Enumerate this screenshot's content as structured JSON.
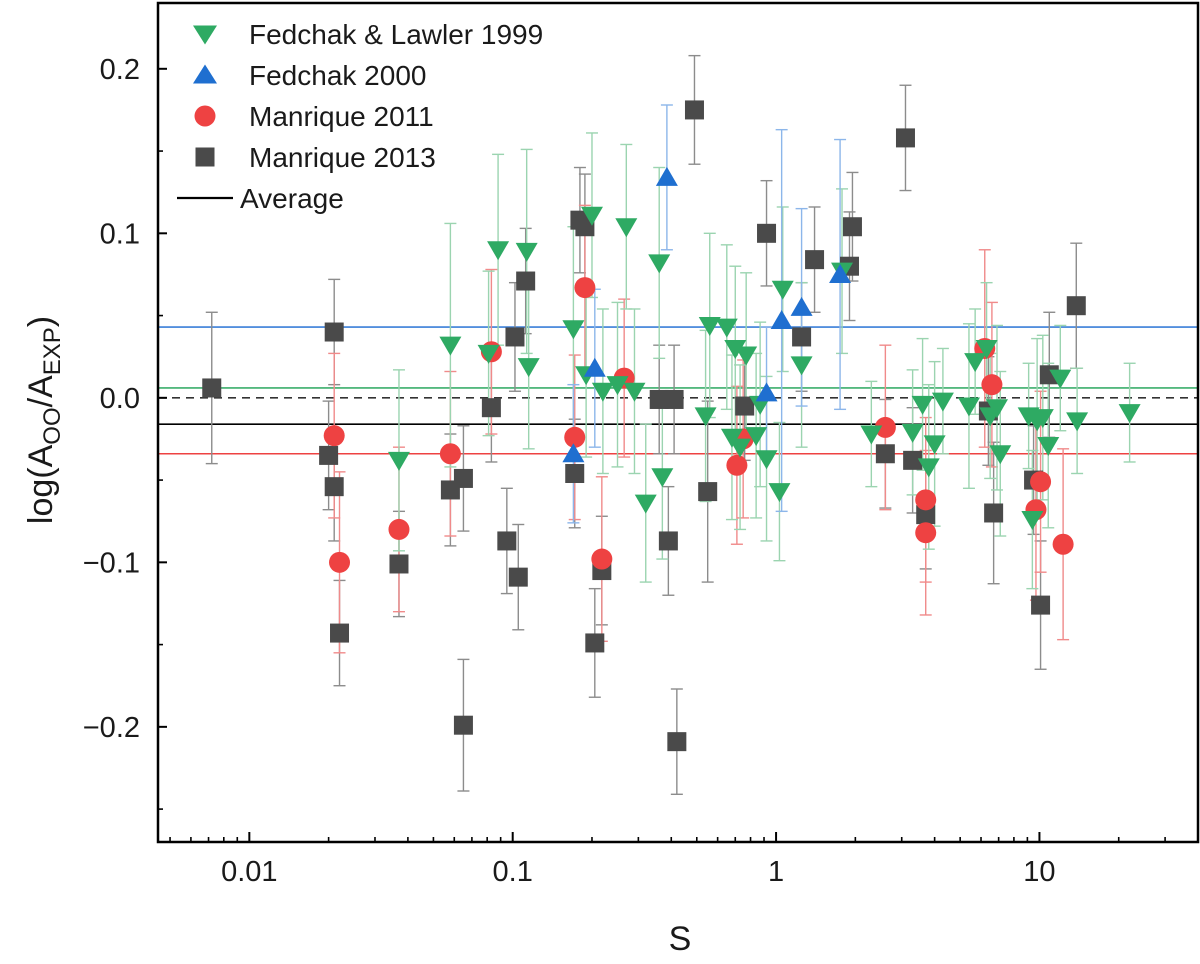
{
  "chart_data": {
    "type": "scatter",
    "xscale": "log",
    "xlim": [
      0.0045,
      40
    ],
    "ylim": [
      -0.27,
      0.24
    ],
    "xlabel": "S",
    "ylabel_main": "log(A",
    "ylabel_sub1": "OO",
    "ylabel_mid": "/A",
    "ylabel_sub2": "EXP",
    "ylabel_end": ")",
    "x_ticks": [
      {
        "value": 0.01,
        "label": "0.01"
      },
      {
        "value": 0.1,
        "label": "0.1"
      },
      {
        "value": 1,
        "label": "1"
      },
      {
        "value": 10,
        "label": "10"
      }
    ],
    "y_ticks": [
      {
        "value": 0.2,
        "label": "0.2"
      },
      {
        "value": 0.1,
        "label": "0.1"
      },
      {
        "value": 0.0,
        "label": "0.0"
      },
      {
        "value": -0.1,
        "label": "−0.1"
      },
      {
        "value": -0.2,
        "label": "−0.2"
      }
    ],
    "legend": {
      "position": "top-left",
      "entries": [
        {
          "label": "Fedchak & Lawler 1999",
          "marker": "triangle-down",
          "color": "#2eaa63"
        },
        {
          "label": "Fedchak 2000",
          "marker": "triangle-up",
          "color": "#1f6fd0"
        },
        {
          "label": "Manrique 2011",
          "marker": "circle",
          "color": "#ee4242"
        },
        {
          "label": "Manrique 2013",
          "marker": "square",
          "color": "#4a4a4a"
        },
        {
          "label": "Average",
          "marker": "line",
          "color": "#000000"
        }
      ]
    },
    "reference_lines": [
      {
        "name": "Fedchak 2000 mean",
        "y": 0.043,
        "color": "#3a7fd8",
        "dash": "solid"
      },
      {
        "name": "Fedchak & Lawler 1999 mean",
        "y": 0.006,
        "color": "#3cae6c",
        "dash": "solid"
      },
      {
        "name": "zero",
        "y": 0.0,
        "color": "#333333",
        "dash": "dashed"
      },
      {
        "name": "Average",
        "y": -0.016,
        "color": "#000000",
        "dash": "solid"
      },
      {
        "name": "Manrique 2011 mean",
        "y": -0.034,
        "color": "#ee4242",
        "dash": "solid"
      }
    ],
    "series": [
      {
        "name": "Manrique 2013",
        "marker": "square",
        "color": "#4a4a4a",
        "err_color": "#8c8c8c",
        "points": [
          [
            0.0072,
            0.006,
            0.046
          ],
          [
            0.021,
            0.04,
            0.032
          ],
          [
            0.02,
            -0.035,
            0.033
          ],
          [
            0.021,
            -0.054,
            0.033
          ],
          [
            0.022,
            -0.143,
            0.032
          ],
          [
            0.037,
            -0.101,
            0.032
          ],
          [
            0.058,
            -0.056,
            0.034
          ],
          [
            0.065,
            -0.049,
            0.032
          ],
          [
            0.065,
            -0.199,
            0.04
          ],
          [
            0.083,
            -0.006,
            0.033
          ],
          [
            0.095,
            -0.087,
            0.032
          ],
          [
            0.102,
            0.037,
            0.033
          ],
          [
            0.105,
            -0.109,
            0.032
          ],
          [
            0.112,
            0.071,
            0.032
          ],
          [
            0.172,
            -0.046,
            0.033
          ],
          [
            0.18,
            0.108,
            0.032
          ],
          [
            0.188,
            0.104,
            0.032
          ],
          [
            0.205,
            -0.149,
            0.033
          ],
          [
            0.218,
            -0.105,
            0.033
          ],
          [
            0.36,
            -0.001,
            0.033
          ],
          [
            0.39,
            -0.087,
            0.033
          ],
          [
            0.41,
            -0.001,
            0.033
          ],
          [
            0.42,
            -0.209,
            0.032
          ],
          [
            0.49,
            0.175,
            0.033
          ],
          [
            0.55,
            -0.057,
            0.055
          ],
          [
            0.76,
            -0.005,
            0.033
          ],
          [
            0.92,
            0.1,
            0.032
          ],
          [
            1.25,
            0.037,
            0.033
          ],
          [
            1.4,
            0.084,
            0.032
          ],
          [
            1.9,
            0.08,
            0.033
          ],
          [
            1.95,
            0.104,
            0.033
          ],
          [
            2.6,
            -0.034,
            0.033
          ],
          [
            3.1,
            0.158,
            0.032
          ],
          [
            3.3,
            -0.038,
            0.032
          ],
          [
            3.7,
            -0.071,
            0.033
          ],
          [
            6.4,
            -0.008,
            0.033
          ],
          [
            6.7,
            -0.07,
            0.043
          ],
          [
            9.5,
            -0.05,
            0.033
          ],
          [
            10.1,
            -0.126,
            0.039
          ],
          [
            10.9,
            0.014,
            0.038
          ],
          [
            13.8,
            0.056,
            0.038
          ]
        ]
      },
      {
        "name": "Manrique 2011",
        "marker": "circle",
        "color": "#ee4242",
        "err_color": "#f08a8a",
        "points": [
          [
            0.021,
            -0.023,
            0.05
          ],
          [
            0.022,
            -0.1,
            0.055
          ],
          [
            0.037,
            -0.08,
            0.05
          ],
          [
            0.058,
            -0.034,
            0.05
          ],
          [
            0.083,
            0.028,
            0.05
          ],
          [
            0.172,
            -0.024,
            0.05
          ],
          [
            0.188,
            0.067,
            0.05
          ],
          [
            0.218,
            -0.098,
            0.05
          ],
          [
            0.265,
            0.012,
            0.048
          ],
          [
            0.71,
            -0.041,
            0.048
          ],
          [
            0.75,
            -0.025,
            0.048
          ],
          [
            2.6,
            -0.018,
            0.05
          ],
          [
            3.7,
            -0.062,
            0.05
          ],
          [
            3.7,
            -0.082,
            0.05
          ],
          [
            6.2,
            0.03,
            0.06
          ],
          [
            6.6,
            0.008,
            0.05
          ],
          [
            9.7,
            -0.068,
            0.055
          ],
          [
            10.1,
            -0.051,
            0.055
          ],
          [
            12.3,
            -0.089,
            0.058
          ]
        ]
      },
      {
        "name": "Fedchak & Lawler 1999",
        "marker": "triangle-down",
        "color": "#2eaa63",
        "err_color": "#9bd4b0",
        "points": [
          [
            0.037,
            -0.038,
            0.055
          ],
          [
            0.058,
            0.032,
            0.074
          ],
          [
            0.081,
            0.027,
            0.05
          ],
          [
            0.088,
            0.09,
            0.058
          ],
          [
            0.113,
            0.089,
            0.062
          ],
          [
            0.115,
            0.019,
            0.05
          ],
          [
            0.17,
            0.042,
            0.062
          ],
          [
            0.19,
            0.014,
            0.05
          ],
          [
            0.2,
            0.111,
            0.05
          ],
          [
            0.22,
            0.004,
            0.05
          ],
          [
            0.25,
            0.008,
            0.05
          ],
          [
            0.27,
            0.104,
            0.05
          ],
          [
            0.29,
            0.004,
            0.05
          ],
          [
            0.32,
            -0.064,
            0.048
          ],
          [
            0.36,
            0.082,
            0.058
          ],
          [
            0.37,
            -0.048,
            0.05
          ],
          [
            0.54,
            -0.011,
            0.052
          ],
          [
            0.56,
            0.044,
            0.056
          ],
          [
            0.65,
            0.043,
            0.05
          ],
          [
            0.68,
            -0.024,
            0.05
          ],
          [
            0.7,
            0.03,
            0.05
          ],
          [
            0.73,
            -0.03,
            0.05
          ],
          [
            0.77,
            0.026,
            0.05
          ],
          [
            0.84,
            -0.023,
            0.05
          ],
          [
            0.87,
            -0.004,
            0.05
          ],
          [
            0.92,
            -0.037,
            0.05
          ],
          [
            1.03,
            -0.057,
            0.042
          ],
          [
            1.06,
            0.066,
            0.05
          ],
          [
            1.25,
            0.02,
            0.05
          ],
          [
            1.78,
            0.077,
            0.05
          ],
          [
            2.3,
            -0.022,
            0.032
          ],
          [
            3.3,
            -0.021,
            0.038
          ],
          [
            3.6,
            -0.004,
            0.04
          ],
          [
            3.8,
            -0.042,
            0.05
          ],
          [
            4.0,
            -0.028,
            0.05
          ],
          [
            4.3,
            -0.002,
            0.032
          ],
          [
            5.4,
            -0.005,
            0.05
          ],
          [
            5.7,
            0.022,
            0.032
          ],
          [
            6.3,
            0.03,
            0.04
          ],
          [
            6.5,
            -0.011,
            0.038
          ],
          [
            6.9,
            -0.006,
            0.05
          ],
          [
            7.1,
            -0.034,
            0.05
          ],
          [
            9.1,
            -0.011,
            0.032
          ],
          [
            9.4,
            -0.074,
            0.042
          ],
          [
            9.8,
            -0.014,
            0.05
          ],
          [
            10.3,
            -0.012,
            0.05
          ],
          [
            10.8,
            -0.029,
            0.05
          ],
          [
            12.0,
            0.012,
            0.032
          ],
          [
            13.9,
            -0.014,
            0.032
          ],
          [
            22.0,
            -0.009,
            0.03
          ]
        ]
      },
      {
        "name": "Fedchak 2000",
        "marker": "triangle-up",
        "color": "#1f6fd0",
        "err_color": "#8cb6ea",
        "points": [
          [
            0.17,
            -0.034,
            0.042
          ],
          [
            0.205,
            0.018,
            0.048
          ],
          [
            0.385,
            0.134,
            0.044
          ],
          [
            0.92,
            0.003,
            0.04
          ],
          [
            1.05,
            0.047,
            0.116
          ],
          [
            1.25,
            0.055,
            0.06
          ],
          [
            1.75,
            0.075,
            0.082
          ]
        ]
      }
    ]
  }
}
